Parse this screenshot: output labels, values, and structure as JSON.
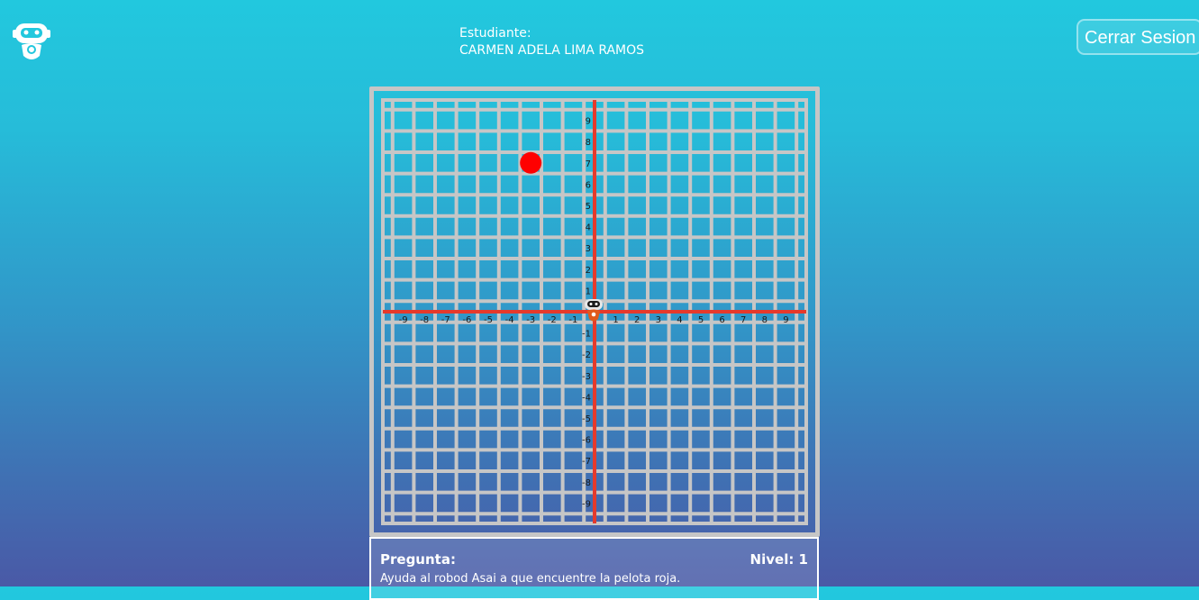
{
  "header": {
    "student_label": "Estudiante:",
    "student_name": "CARMEN ADELA LIMA RAMOS",
    "logout_label": "Cerrar Sesion",
    "logo_icon": "robot-logo-icon"
  },
  "grid": {
    "x_min": -9,
    "x_max": 9,
    "y_min": -9,
    "y_max": 9,
    "x_ticks": [
      "-9",
      "-8",
      "-7",
      "-6",
      "-5",
      "-4",
      "-3",
      "-2",
      "-1",
      "1",
      "2",
      "3",
      "4",
      "5",
      "6",
      "7",
      "8",
      "9"
    ],
    "y_ticks": [
      "9",
      "8",
      "7",
      "6",
      "5",
      "4",
      "3",
      "2",
      "1",
      "-1",
      "-2",
      "-3",
      "-4",
      "-5",
      "-6",
      "-7",
      "-8",
      "-9"
    ],
    "target_ball": {
      "x": -3,
      "y": 7,
      "color": "#ff0000"
    },
    "robot": {
      "x": 0,
      "y": 0,
      "icon": "robot-icon"
    },
    "axis_color": "#e53a2c",
    "grid_color": "#c6c6c6"
  },
  "question": {
    "label": "Pregunta:",
    "level": "Nivel: 1",
    "text": "Ayuda al robod Asai a que encuentre la pelota roja."
  }
}
